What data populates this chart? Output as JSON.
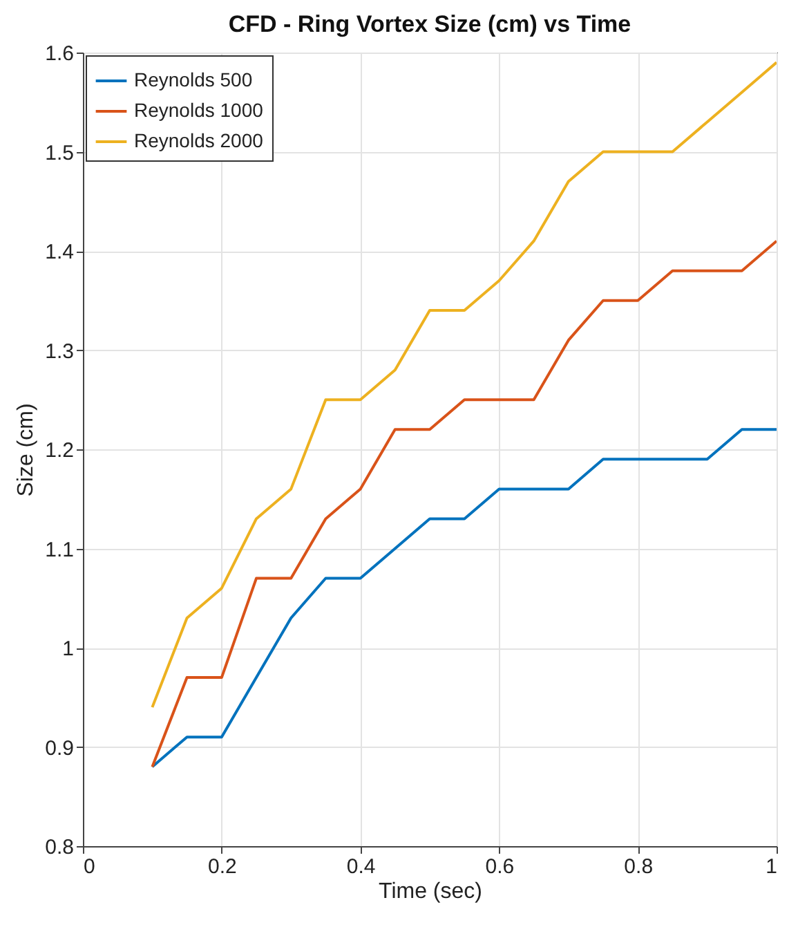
{
  "chart_data": {
    "type": "line",
    "title": "CFD - Ring Vortex Size (cm) vs Time",
    "xlabel": "Time (sec)",
    "ylabel": "Size (cm)",
    "x": [
      0.1,
      0.15,
      0.2,
      0.25,
      0.3,
      0.35,
      0.4,
      0.45,
      0.5,
      0.55,
      0.6,
      0.65,
      0.7,
      0.75,
      0.8,
      0.85,
      0.9,
      0.95,
      1
    ],
    "series": [
      {
        "name": "Reynolds 500",
        "color": "#0072bd",
        "values": [
          0.88,
          0.91,
          0.91,
          0.97,
          1.03,
          1.07,
          1.07,
          1.1,
          1.13,
          1.13,
          1.16,
          1.16,
          1.16,
          1.19,
          1.19,
          1.19,
          1.19,
          1.22,
          1.22
        ]
      },
      {
        "name": "Reynolds 1000",
        "color": "#d95319",
        "values": [
          0.88,
          0.97,
          0.97,
          1.07,
          1.07,
          1.13,
          1.16,
          1.22,
          1.22,
          1.25,
          1.25,
          1.25,
          1.31,
          1.35,
          1.35,
          1.38,
          1.38,
          1.38,
          1.41
        ]
      },
      {
        "name": "Reynolds 2000",
        "color": "#edb120",
        "values": [
          0.94,
          1.03,
          1.06,
          1.13,
          1.16,
          1.25,
          1.25,
          1.28,
          1.34,
          1.34,
          1.37,
          1.41,
          1.47,
          1.5,
          1.5,
          1.5,
          1.53,
          1.56,
          1.59
        ]
      }
    ],
    "xlim": [
      0,
      1
    ],
    "xticks": [
      0,
      0.2,
      0.4,
      0.6,
      0.8,
      1
    ],
    "ylim": [
      0.8,
      1.6
    ],
    "yticks": [
      0.8,
      0.9,
      1,
      1.1,
      1.2,
      1.3,
      1.4,
      1.5,
      1.6
    ],
    "grid": true,
    "legend": "top left",
    "marker": "none",
    "line_style": "solid"
  }
}
